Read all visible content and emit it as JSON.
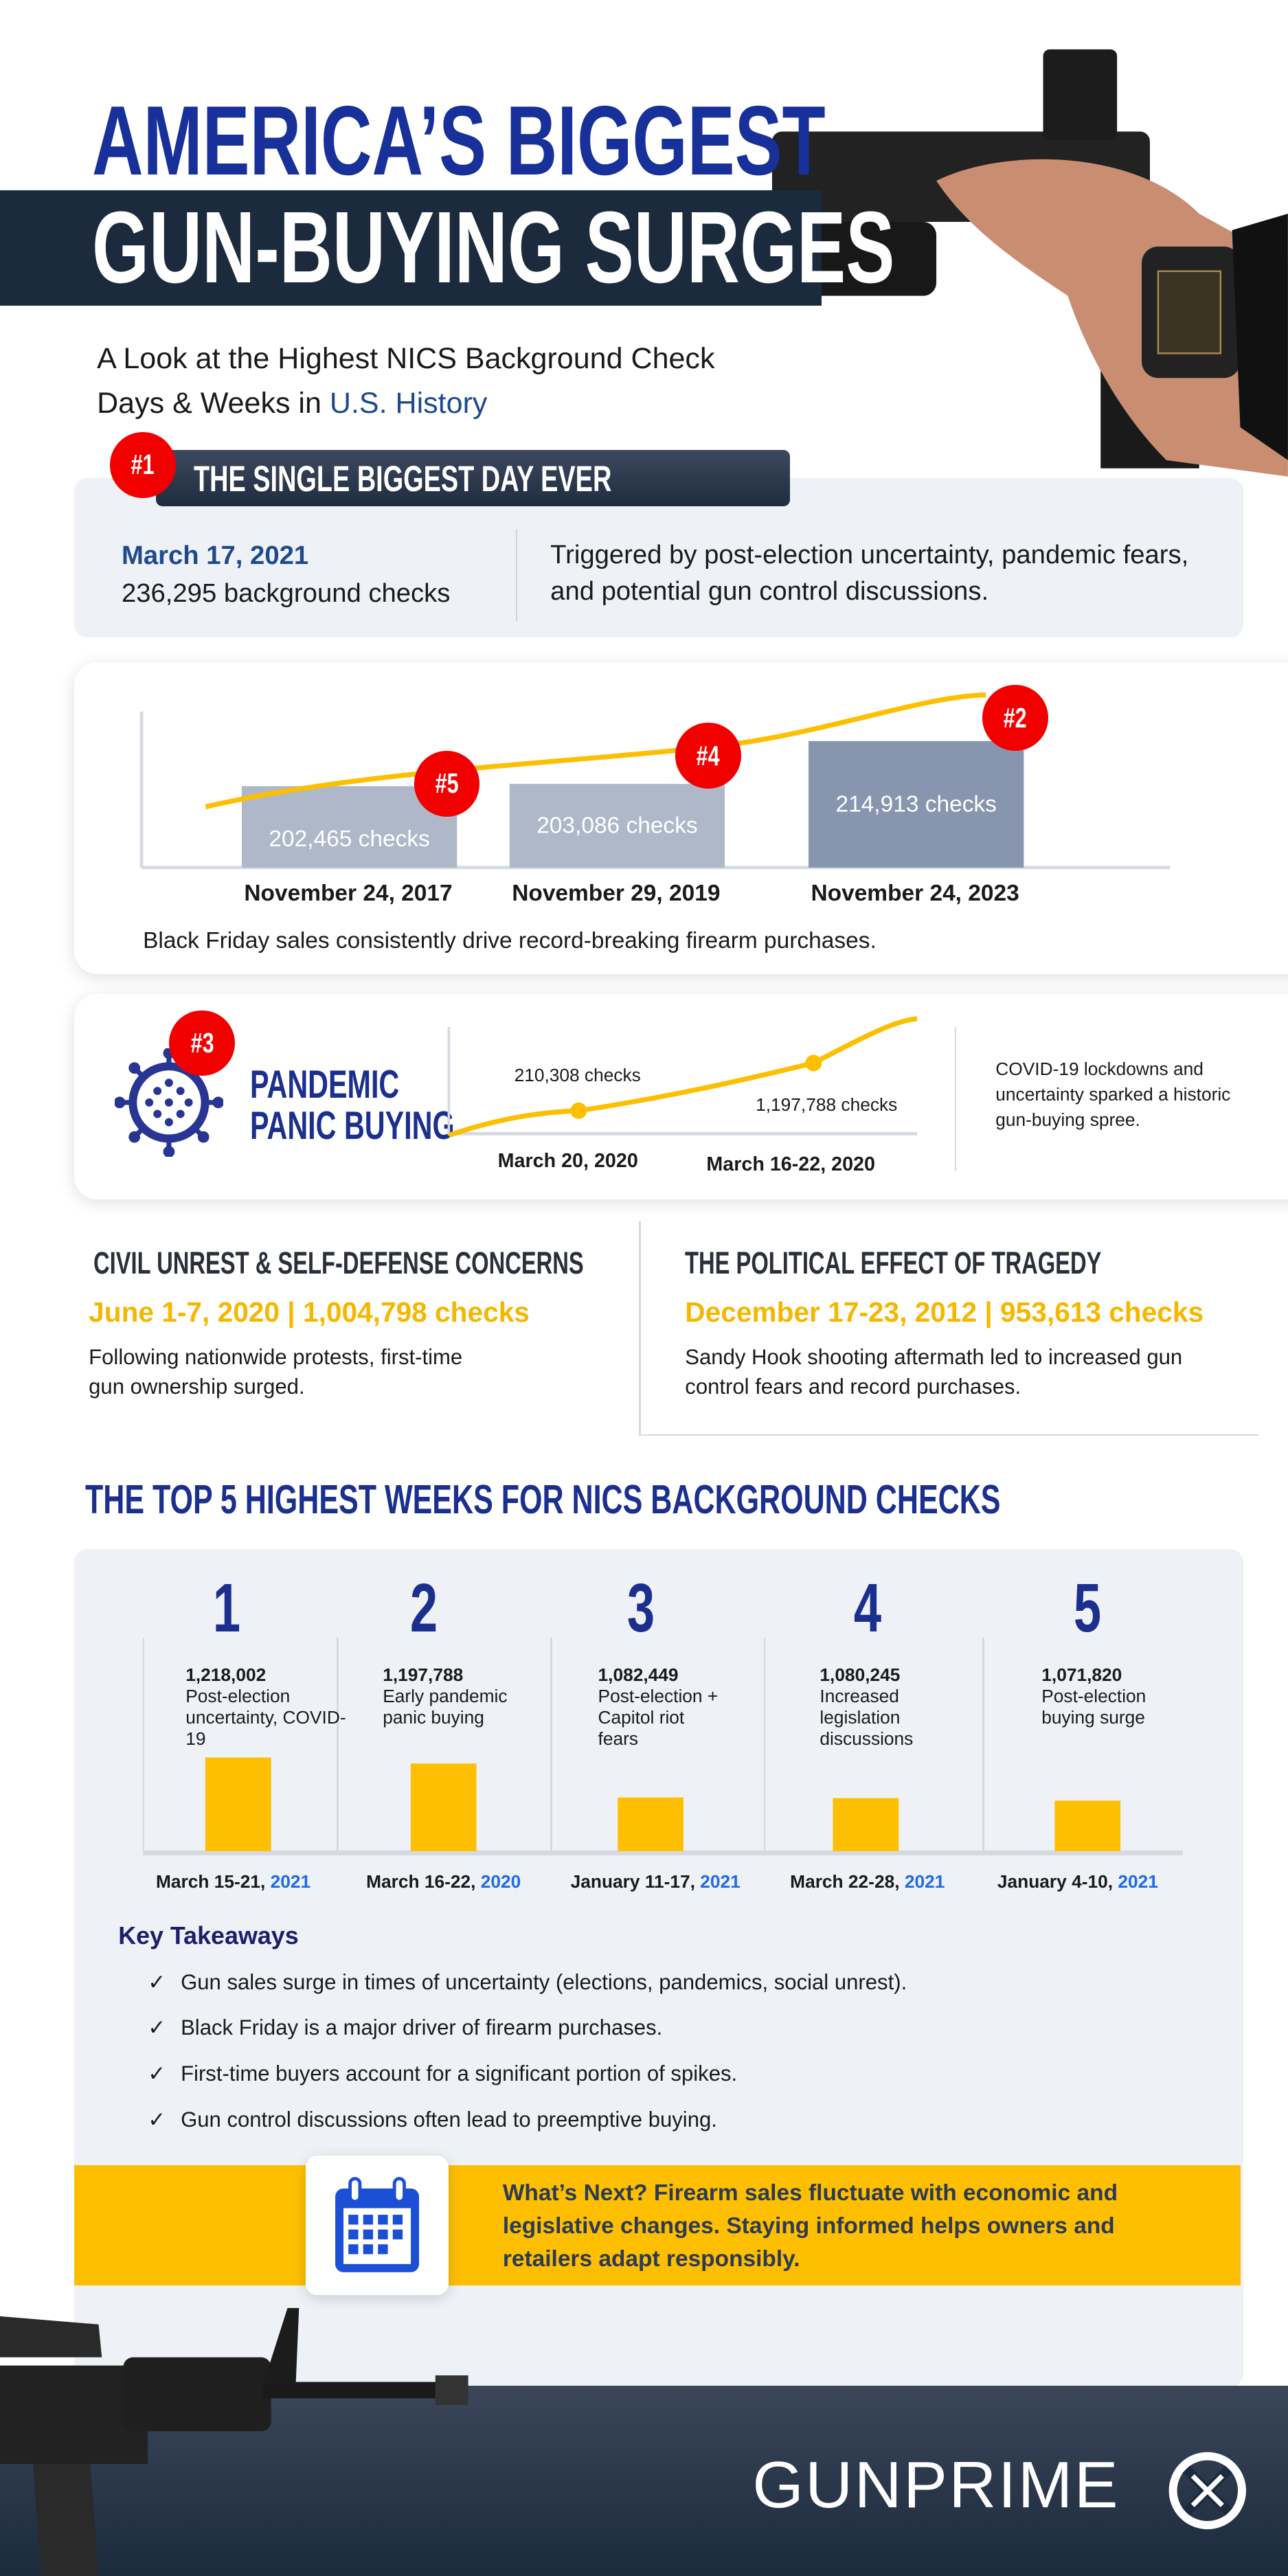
{
  "header": {
    "title_line1": "AMERICA’S BIGGEST",
    "title_line2": "GUN-BUYING SURGES",
    "subtitle_line1": "A Look at the Highest NICS Background Check",
    "subtitle_line2_prefix": "Days & Weeks in ",
    "subtitle_line2_highlight": "U.S. History"
  },
  "biggest_day": {
    "badge": "#1",
    "heading": "THE SINGLE BIGGEST DAY EVER",
    "date": "March 17, 2021",
    "count": "236,295 background checks",
    "description": "Triggered by post-election uncertainty, pandemic fears, and potential gun control discussions."
  },
  "black_friday": {
    "caption": "Black Friday sales consistently drive record-breaking firearm purchases.",
    "badges": [
      "#5",
      "#4",
      "#2"
    ],
    "bar_labels": [
      "202,465  checks",
      "203,086 checks",
      "214,913 checks"
    ]
  },
  "pandemic": {
    "badge": "#3",
    "title_line1": "PANDEMIC",
    "title_line2": "PANIC BUYING",
    "point_labels": [
      "210,308 checks",
      "1,197,788 checks"
    ],
    "dates": [
      "March 20, 2020",
      "March 16-22, 2020"
    ],
    "description": "COVID-19 lockdowns and uncertainty sparked a historic gun-buying spree."
  },
  "civil_unrest": {
    "heading": "CIVIL UNREST & SELF-DEFENSE CONCERNS",
    "stat": "June 1-7, 2020 | 1,004,798 checks",
    "description": "Following nationwide protests, first-time gun ownership surged."
  },
  "political": {
    "heading": "THE POLITICAL EFFECT OF TRAGEDY",
    "stat": "December 17-23, 2012 | 953,613 checks",
    "description": "Sandy Hook shooting aftermath led to increased gun control fears and record purchases."
  },
  "top5": {
    "heading": "THE TOP 5 HIGHEST WEEKS FOR NICS BACKGROUND CHECKS",
    "items": [
      {
        "rank": "1",
        "count": "1,218,002",
        "reason": "Post-election uncertainty, COVID-19",
        "dates": "March 15-21, ",
        "year": "2021"
      },
      {
        "rank": "2",
        "count": "1,197,788",
        "reason": "Early pandemic panic buying",
        "dates": "March 16-22, ",
        "year": "2020"
      },
      {
        "rank": "3",
        "count": "1,082,449",
        "reason": "Post-election + Capitol riot fears",
        "dates": "January 11-17, ",
        "year": "2021"
      },
      {
        "rank": "4",
        "count": "1,080,245",
        "reason": "Increased legislation discussions",
        "dates": "March 22-28, ",
        "year": "2021"
      },
      {
        "rank": "5",
        "count": "1,071,820",
        "reason": "Post-election buying surge",
        "dates": "January 4-10, ",
        "year": "2021"
      }
    ]
  },
  "takeaways": {
    "heading": "Key Takeaways",
    "check": "✓",
    "items": [
      "Gun sales surge in times of uncertainty (elections, pandemics, social unrest).",
      "Black Friday is a major driver of firearm purchases.",
      "First-time buyers account for a significant portion of spikes.",
      "Gun control discussions often lead to preemptive buying."
    ]
  },
  "whats_next": {
    "text": "What’s Next? Firearm sales fluctuate with economic and legislative changes. Staying informed helps owners and retailers adapt responsibly.",
    "icon": "calendar-icon"
  },
  "footer": {
    "logo": "GUNPRIME"
  },
  "colors": {
    "navy": "#1b2a3d",
    "blue": "#1b2f8f",
    "red": "#f20000",
    "yellow": "#fdbf00",
    "panel": "#eef1f6",
    "bar_light": "#aeb8c9",
    "bar_dark": "#8796ae"
  },
  "chart_data": [
    {
      "type": "bar",
      "categories": [
        "November 24, 2017",
        "November 29, 2019",
        "November 24, 2023"
      ],
      "values": [
        202465,
        203086,
        214913
      ],
      "ylim": [
        180000,
        220000
      ],
      "trend_line": true
    },
    {
      "type": "line",
      "x": [
        "March 20, 2020",
        "March 16-22, 2020"
      ],
      "values": [
        210308,
        1197788
      ]
    },
    {
      "type": "bar",
      "categories": [
        "March 15-21, 2021",
        "March 16-22, 2020",
        "January 11-17, 2021",
        "March 22-28, 2021",
        "January 4-10, 2021"
      ],
      "values": [
        1218002,
        1197788,
        1082449,
        1080245,
        1071820
      ],
      "ylim": [
        900000,
        1250000
      ]
    }
  ]
}
